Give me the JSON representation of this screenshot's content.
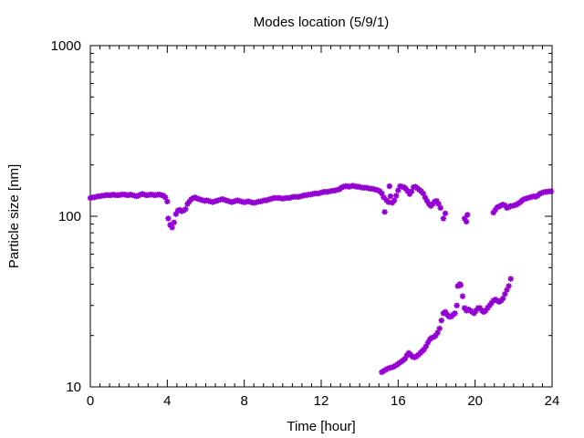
{
  "chart_data": {
    "type": "scatter",
    "title": "Modes location (5/9/1)",
    "xlabel": "Time [hour]",
    "ylabel": "Particle size [nm]",
    "xlim": [
      0,
      24
    ],
    "ylim": [
      10,
      1000
    ],
    "y_scale": "log",
    "grid": false,
    "legend": "none",
    "x_ticks": [
      0,
      4,
      8,
      12,
      16,
      20,
      24
    ],
    "x_tick_labels": [
      "0",
      "4",
      "8",
      "12",
      "16",
      "20",
      "24"
    ],
    "y_ticks": [
      10,
      100,
      1000
    ],
    "y_tick_labels": [
      "10",
      "100",
      "1000"
    ],
    "marker": "star",
    "color": "#9400d3",
    "series": [
      {
        "name": "",
        "points": [
          [
            0.0,
            128
          ],
          [
            0.1,
            129
          ],
          [
            0.2,
            129
          ],
          [
            0.3,
            130
          ],
          [
            0.4,
            131
          ],
          [
            0.5,
            131
          ],
          [
            0.6,
            132
          ],
          [
            0.7,
            132
          ],
          [
            0.8,
            133
          ],
          [
            0.9,
            133
          ],
          [
            1.0,
            133
          ],
          [
            1.1,
            133
          ],
          [
            1.2,
            134
          ],
          [
            1.3,
            133
          ],
          [
            1.4,
            133
          ],
          [
            1.5,
            133
          ],
          [
            1.6,
            134
          ],
          [
            1.7,
            134
          ],
          [
            1.8,
            134
          ],
          [
            1.9,
            133
          ],
          [
            2.0,
            133
          ],
          [
            2.1,
            134
          ],
          [
            2.2,
            133
          ],
          [
            2.3,
            132
          ],
          [
            2.4,
            131
          ],
          [
            2.5,
            132
          ],
          [
            2.6,
            134
          ],
          [
            2.7,
            135
          ],
          [
            2.8,
            134
          ],
          [
            2.9,
            133
          ],
          [
            3.0,
            133
          ],
          [
            3.1,
            134
          ],
          [
            3.2,
            134
          ],
          [
            3.3,
            133
          ],
          [
            3.4,
            133
          ],
          [
            3.5,
            134
          ],
          [
            3.6,
            134
          ],
          [
            3.7,
            133
          ],
          [
            3.8,
            132
          ],
          [
            3.9,
            129
          ],
          [
            4.0,
            122
          ],
          [
            4.05,
            97
          ],
          [
            4.15,
            89
          ],
          [
            4.25,
            86
          ],
          [
            4.35,
            92
          ],
          [
            4.45,
            103
          ],
          [
            4.55,
            108
          ],
          [
            4.65,
            109
          ],
          [
            4.75,
            107
          ],
          [
            4.85,
            108
          ],
          [
            4.95,
            110
          ],
          [
            5.05,
            118
          ],
          [
            5.15,
            122
          ],
          [
            5.25,
            126
          ],
          [
            5.35,
            128
          ],
          [
            5.45,
            129
          ],
          [
            5.55,
            127
          ],
          [
            5.65,
            126
          ],
          [
            5.75,
            125
          ],
          [
            5.85,
            124
          ],
          [
            5.95,
            123
          ],
          [
            6.05,
            124
          ],
          [
            6.15,
            123
          ],
          [
            6.25,
            122
          ],
          [
            6.35,
            121
          ],
          [
            6.45,
            122
          ],
          [
            6.55,
            123
          ],
          [
            6.65,
            124
          ],
          [
            6.75,
            125
          ],
          [
            6.85,
            126
          ],
          [
            6.95,
            125
          ],
          [
            7.05,
            124
          ],
          [
            7.15,
            123
          ],
          [
            7.25,
            122
          ],
          [
            7.35,
            121
          ],
          [
            7.45,
            122
          ],
          [
            7.55,
            123
          ],
          [
            7.65,
            124
          ],
          [
            7.75,
            123
          ],
          [
            7.85,
            122
          ],
          [
            7.95,
            121
          ],
          [
            8.05,
            121
          ],
          [
            8.15,
            122
          ],
          [
            8.25,
            122
          ],
          [
            8.35,
            121
          ],
          [
            8.45,
            120
          ],
          [
            8.55,
            120
          ],
          [
            8.65,
            121
          ],
          [
            8.75,
            122
          ],
          [
            8.85,
            122
          ],
          [
            8.95,
            123
          ],
          [
            9.05,
            124
          ],
          [
            9.15,
            124
          ],
          [
            9.25,
            125
          ],
          [
            9.35,
            126
          ],
          [
            9.45,
            127
          ],
          [
            9.55,
            128
          ],
          [
            9.65,
            128
          ],
          [
            9.75,
            128
          ],
          [
            9.85,
            128
          ],
          [
            9.95,
            127
          ],
          [
            10.05,
            127
          ],
          [
            10.15,
            128
          ],
          [
            10.25,
            128
          ],
          [
            10.35,
            128
          ],
          [
            10.45,
            129
          ],
          [
            10.55,
            130
          ],
          [
            10.65,
            130
          ],
          [
            10.75,
            130
          ],
          [
            10.85,
            130
          ],
          [
            10.95,
            131
          ],
          [
            11.05,
            132
          ],
          [
            11.15,
            133
          ],
          [
            11.25,
            133
          ],
          [
            11.35,
            134
          ],
          [
            11.45,
            134
          ],
          [
            11.55,
            135
          ],
          [
            11.65,
            136
          ],
          [
            11.75,
            136
          ],
          [
            11.85,
            136
          ],
          [
            11.95,
            137
          ],
          [
            12.05,
            138
          ],
          [
            12.15,
            139
          ],
          [
            12.25,
            139
          ],
          [
            12.35,
            139
          ],
          [
            12.45,
            140
          ],
          [
            12.55,
            141
          ],
          [
            12.65,
            141
          ],
          [
            12.75,
            142
          ],
          [
            12.85,
            143
          ],
          [
            12.95,
            144
          ],
          [
            13.05,
            147
          ],
          [
            13.15,
            149
          ],
          [
            13.25,
            150
          ],
          [
            13.35,
            150
          ],
          [
            13.45,
            149
          ],
          [
            13.55,
            150
          ],
          [
            13.65,
            151
          ],
          [
            13.75,
            150
          ],
          [
            13.85,
            149
          ],
          [
            13.95,
            149
          ],
          [
            14.05,
            148
          ],
          [
            14.15,
            147
          ],
          [
            14.25,
            147
          ],
          [
            14.35,
            147
          ],
          [
            14.45,
            146
          ],
          [
            14.55,
            145
          ],
          [
            14.65,
            145
          ],
          [
            14.75,
            144
          ],
          [
            14.85,
            143
          ],
          [
            14.95,
            142
          ],
          [
            15.05,
            140
          ],
          [
            15.15,
            136
          ],
          [
            15.25,
            129
          ],
          [
            15.3,
            106
          ],
          [
            15.4,
            124
          ],
          [
            15.5,
            121
          ],
          [
            15.55,
            150
          ],
          [
            15.6,
            131
          ],
          [
            15.7,
            120
          ],
          [
            15.8,
            124
          ],
          [
            15.9,
            132
          ],
          [
            16.0,
            142
          ],
          [
            16.1,
            150
          ],
          [
            16.2,
            149
          ],
          [
            16.3,
            148
          ],
          [
            16.4,
            145
          ],
          [
            16.5,
            140
          ],
          [
            16.6,
            135
          ],
          [
            16.7,
            140
          ],
          [
            16.8,
            148
          ],
          [
            16.9,
            149
          ],
          [
            17.0,
            146
          ],
          [
            17.1,
            143
          ],
          [
            17.2,
            140
          ],
          [
            17.3,
            136
          ],
          [
            17.4,
            129
          ],
          [
            17.5,
            123
          ],
          [
            17.6,
            118
          ],
          [
            17.7,
            115
          ],
          [
            17.8,
            118
          ],
          [
            17.9,
            122
          ],
          [
            18.0,
            123
          ],
          [
            18.1,
            118
          ],
          [
            18.2,
            112
          ],
          [
            18.35,
            97
          ],
          [
            18.45,
            104
          ],
          [
            19.45,
            97
          ],
          [
            19.55,
            93
          ],
          [
            19.6,
            102
          ],
          [
            20.95,
            105
          ],
          [
            21.05,
            109
          ],
          [
            21.15,
            113
          ],
          [
            21.25,
            114
          ],
          [
            21.35,
            116
          ],
          [
            21.45,
            117
          ],
          [
            21.55,
            116
          ],
          [
            21.65,
            112
          ],
          [
            21.75,
            113
          ],
          [
            21.85,
            115
          ],
          [
            21.95,
            115
          ],
          [
            22.05,
            116
          ],
          [
            22.15,
            117
          ],
          [
            22.25,
            119
          ],
          [
            22.35,
            121
          ],
          [
            22.45,
            124
          ],
          [
            22.55,
            126
          ],
          [
            22.65,
            127
          ],
          [
            22.75,
            128
          ],
          [
            22.85,
            129
          ],
          [
            22.95,
            130
          ],
          [
            23.05,
            131
          ],
          [
            23.15,
            130
          ],
          [
            23.25,
            132
          ],
          [
            23.35,
            135
          ],
          [
            23.45,
            137
          ],
          [
            23.55,
            138
          ],
          [
            23.65,
            139
          ],
          [
            23.75,
            139
          ],
          [
            23.85,
            140
          ],
          [
            23.95,
            140
          ],
          [
            15.15,
            12.2
          ],
          [
            15.25,
            12.4
          ],
          [
            15.35,
            12.6
          ],
          [
            15.45,
            12.8
          ],
          [
            15.55,
            12.9
          ],
          [
            15.65,
            13.0
          ],
          [
            15.75,
            13.1
          ],
          [
            15.85,
            13.3
          ],
          [
            15.95,
            13.5
          ],
          [
            16.05,
            13.8
          ],
          [
            16.15,
            14.0
          ],
          [
            16.25,
            14.3
          ],
          [
            16.35,
            14.6
          ],
          [
            16.45,
            15.3
          ],
          [
            16.55,
            15.8
          ],
          [
            16.65,
            15.4
          ],
          [
            16.75,
            15.0
          ],
          [
            16.85,
            14.9
          ],
          [
            16.95,
            15.1
          ],
          [
            17.05,
            15.4
          ],
          [
            17.15,
            15.8
          ],
          [
            17.25,
            16.2
          ],
          [
            17.35,
            16.6
          ],
          [
            17.45,
            17.3
          ],
          [
            17.55,
            18.2
          ],
          [
            17.65,
            19.0
          ],
          [
            17.75,
            19.4
          ],
          [
            17.85,
            19.6
          ],
          [
            17.95,
            20.0
          ],
          [
            18.05,
            20.8
          ],
          [
            18.15,
            22.0
          ],
          [
            18.25,
            24.5
          ],
          [
            18.35,
            27.0
          ],
          [
            18.45,
            27.5
          ],
          [
            18.55,
            26.5
          ],
          [
            18.65,
            25.8
          ],
          [
            18.75,
            25.8
          ],
          [
            18.85,
            26.5
          ],
          [
            18.95,
            27.0
          ],
          [
            19.05,
            30.0
          ],
          [
            19.1,
            39.0
          ],
          [
            19.2,
            40.0
          ],
          [
            19.25,
            39.5
          ],
          [
            19.35,
            34.0
          ],
          [
            19.45,
            29.0
          ],
          [
            19.55,
            28.0
          ],
          [
            19.65,
            28.5
          ],
          [
            19.75,
            28.0
          ],
          [
            19.85,
            27.5
          ],
          [
            19.95,
            27.0
          ],
          [
            20.05,
            28.0
          ],
          [
            20.15,
            29.0
          ],
          [
            20.25,
            29.0
          ],
          [
            20.35,
            28.0
          ],
          [
            20.45,
            27.5
          ],
          [
            20.55,
            28.0
          ],
          [
            20.65,
            29.0
          ],
          [
            20.75,
            30.0
          ],
          [
            20.85,
            31.0
          ],
          [
            20.95,
            32.0
          ],
          [
            21.05,
            32.5
          ],
          [
            21.15,
            32.0
          ],
          [
            21.25,
            31.5
          ],
          [
            21.35,
            32.0
          ],
          [
            21.45,
            33.0
          ],
          [
            21.55,
            35.0
          ],
          [
            21.65,
            37.0
          ],
          [
            21.75,
            39.0
          ],
          [
            21.85,
            43.0
          ]
        ]
      }
    ]
  }
}
